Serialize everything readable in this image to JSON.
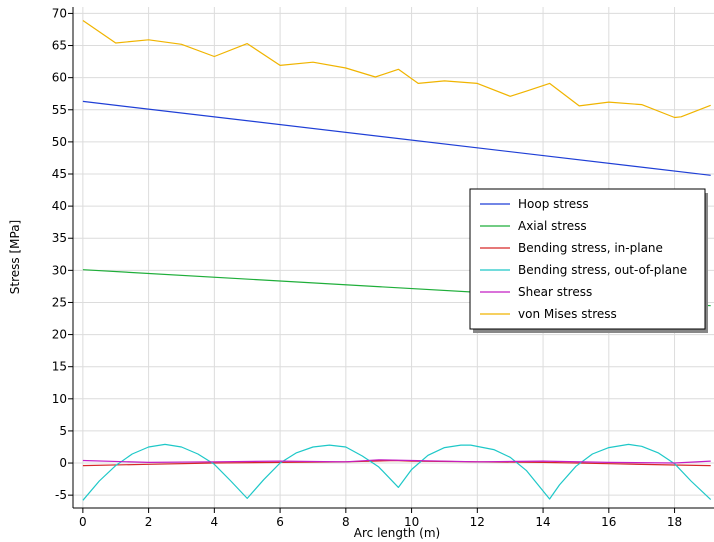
{
  "chart_data": {
    "type": "line",
    "title": "",
    "xlabel": "Arc length (m)",
    "ylabel": "Stress [MPa]",
    "xlim": [
      -0.3,
      19.2
    ],
    "ylim": [
      -7,
      71
    ],
    "xticks": [
      0,
      2,
      4,
      6,
      8,
      10,
      12,
      14,
      16,
      18
    ],
    "yticks": [
      -5,
      0,
      5,
      10,
      15,
      20,
      25,
      30,
      35,
      40,
      45,
      50,
      55,
      60,
      65,
      70
    ],
    "grid": true,
    "legend_position": "right",
    "series": [
      {
        "name": "Hoop stress",
        "color": "#1f3fd6",
        "x": [
          0,
          19.1
        ],
        "y": [
          56.3,
          44.8
        ]
      },
      {
        "name": "Axial stress",
        "color": "#1fae3a",
        "x": [
          0,
          19.1
        ],
        "y": [
          30.1,
          24.5
        ]
      },
      {
        "name": "Bending stress, in-plane",
        "color": "#d62828",
        "x": [
          0,
          2,
          4,
          6,
          8,
          9.5,
          10,
          12,
          14,
          16,
          18,
          19.1
        ],
        "y": [
          -0.4,
          -0.2,
          0,
          0.1,
          0.2,
          0.4,
          0.3,
          0.2,
          0.1,
          -0.1,
          -0.3,
          -0.4
        ]
      },
      {
        "name": "Bending stress, out-of-plane",
        "color": "#1ec8c8",
        "x": [
          0,
          0.5,
          1.0,
          1.5,
          2.0,
          2.5,
          3.0,
          3.5,
          4.0,
          4.5,
          5.0,
          5.5,
          6.0,
          6.5,
          7.0,
          7.5,
          8.0,
          8.5,
          9.0,
          9.6,
          10.0,
          10.5,
          11.0,
          11.5,
          11.8,
          12.5,
          13.0,
          13.5,
          14.2,
          14.5,
          15.0,
          15.5,
          16.0,
          16.6,
          17.0,
          17.5,
          18.0,
          18.5,
          19.1
        ],
        "y": [
          -5.8,
          -2.8,
          -0.4,
          1.4,
          2.5,
          2.9,
          2.5,
          1.4,
          -0.2,
          -2.8,
          -5.5,
          -2.6,
          0.0,
          1.6,
          2.5,
          2.8,
          2.5,
          1.1,
          -0.6,
          -3.8,
          -1.0,
          1.2,
          2.4,
          2.8,
          2.8,
          2.1,
          0.9,
          -1.2,
          -5.6,
          -3.4,
          -0.5,
          1.4,
          2.4,
          2.9,
          2.6,
          1.6,
          -0.1,
          -2.8,
          -5.7
        ]
      },
      {
        "name": "Shear stress",
        "color": "#c41ec4",
        "x": [
          0,
          2,
          4,
          6,
          8,
          9,
          10,
          12,
          14,
          16,
          18,
          19.1
        ],
        "y": [
          0.4,
          0.1,
          0.2,
          0.3,
          0.2,
          0.5,
          0.4,
          0.2,
          0.3,
          0.1,
          0.0,
          0.3
        ]
      },
      {
        "name": "von Mises stress",
        "color": "#f0b400",
        "x": [
          0,
          1.0,
          2.0,
          3.0,
          4.0,
          5.0,
          6.0,
          7.0,
          8.0,
          8.9,
          9.6,
          10.2,
          11.0,
          12.0,
          13.0,
          13.5,
          14.2,
          15.1,
          16.0,
          17.0,
          18.0,
          18.2,
          19.1
        ],
        "y": [
          68.9,
          65.4,
          65.9,
          65.2,
          63.3,
          65.3,
          61.9,
          62.4,
          61.5,
          60.1,
          61.3,
          59.1,
          59.5,
          59.1,
          57.1,
          57.9,
          59.1,
          55.6,
          56.2,
          55.8,
          53.8,
          53.9,
          55.7
        ]
      }
    ]
  }
}
